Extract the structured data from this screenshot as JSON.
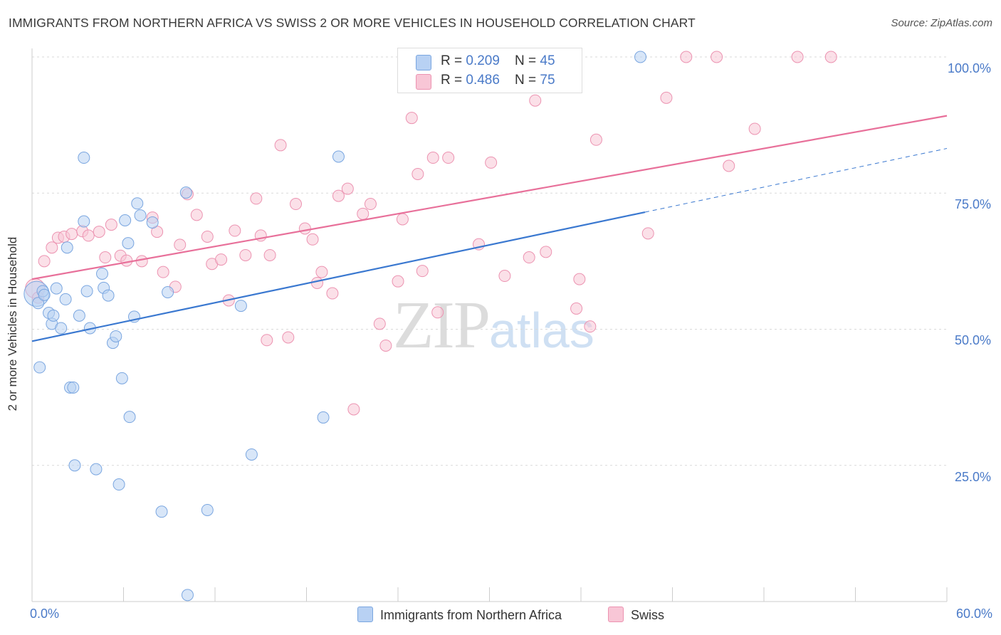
{
  "title": "IMMIGRANTS FROM NORTHERN AFRICA VS SWISS 2 OR MORE VEHICLES IN HOUSEHOLD CORRELATION CHART",
  "source": "Source: ZipAtlas.com",
  "watermark": {
    "part1": "ZIP",
    "part2": "atlas"
  },
  "legend_top": {
    "rows": [
      {
        "r_label": "R = ",
        "r_value": "0.209",
        "n_label": "N = ",
        "n_value": "45"
      },
      {
        "r_label": "R = ",
        "r_value": "0.486",
        "n_label": "N = ",
        "n_value": "75"
      }
    ]
  },
  "colors": {
    "blue_fill": "#b8d1f3",
    "blue_stroke": "#7aa6e0",
    "blue_line": "#3a78d0",
    "pink_fill": "#f8c6d6",
    "pink_stroke": "#ec93b1",
    "pink_line": "#e8709a",
    "grid": "#d9d9d9",
    "tick_text": "#4a7ac8"
  },
  "chart_data": {
    "type": "scatter",
    "title": "IMMIGRANTS FROM NORTHERN AFRICA VS SWISS 2 OR MORE VEHICLES IN HOUSEHOLD CORRELATION CHART",
    "xlabel": "",
    "ylabel": "2 or more Vehicles in Household",
    "xlim": [
      0,
      60
    ],
    "ylim": [
      0,
      100
    ],
    "x_tick_labels": [
      "0.0%",
      "60.0%"
    ],
    "y_tick_labels": [
      "100.0%",
      "75.0%",
      "50.0%",
      "25.0%"
    ],
    "y_tick_values": [
      100,
      75,
      50,
      25
    ],
    "grid": true,
    "legend_position": "bottom",
    "series": [
      {
        "name": "Immigrants from Northern Africa",
        "r": 0.209,
        "n": 45,
        "trend": {
          "x0": 0,
          "y0": 47.8,
          "x1": 40.2,
          "y1": 71.5,
          "dash_to_x": 60,
          "dash_to_y": 83.2
        },
        "points": [
          [
            0.3,
            56.5,
            2.2
          ],
          [
            0.4,
            54.8,
            1
          ],
          [
            0.5,
            43,
            1
          ],
          [
            0.7,
            57,
            1
          ],
          [
            0.8,
            56.3,
            1
          ],
          [
            1.1,
            53,
            1
          ],
          [
            1.3,
            51,
            1
          ],
          [
            1.4,
            52.5,
            1
          ],
          [
            1.6,
            57.5,
            1
          ],
          [
            1.9,
            50.2,
            1
          ],
          [
            2.2,
            55.5,
            1
          ],
          [
            2.3,
            65,
            1
          ],
          [
            2.5,
            39.3,
            1
          ],
          [
            2.7,
            39.3,
            1
          ],
          [
            2.8,
            25,
            1
          ],
          [
            3.1,
            52.5,
            1
          ],
          [
            3.4,
            81.5,
            1
          ],
          [
            3.4,
            69.8,
            1
          ],
          [
            3.6,
            57,
            1
          ],
          [
            3.8,
            50.2,
            1
          ],
          [
            4.2,
            24.3,
            1
          ],
          [
            4.6,
            60.2,
            1
          ],
          [
            4.7,
            57.6,
            1
          ],
          [
            5.0,
            56.2,
            1
          ],
          [
            5.3,
            47.5,
            1
          ],
          [
            5.5,
            48.7,
            1
          ],
          [
            5.7,
            21.5,
            1
          ],
          [
            5.9,
            41,
            1
          ],
          [
            6.1,
            70,
            1
          ],
          [
            6.3,
            65.8,
            1
          ],
          [
            6.4,
            33.9,
            1
          ],
          [
            6.7,
            52.3,
            1
          ],
          [
            6.9,
            73.1,
            1
          ],
          [
            7.1,
            70.9,
            1
          ],
          [
            7.9,
            69.6,
            1
          ],
          [
            8.5,
            16.5,
            1
          ],
          [
            8.9,
            56.8,
            1
          ],
          [
            10.1,
            75.1,
            1
          ],
          [
            10.2,
            1.2,
            1
          ],
          [
            11.5,
            16.8,
            1
          ],
          [
            13.7,
            54.3,
            1
          ],
          [
            14.4,
            27,
            1
          ],
          [
            19.1,
            33.8,
            1
          ],
          [
            20.1,
            81.7,
            1
          ],
          [
            39.9,
            100,
            1
          ]
        ]
      },
      {
        "name": "Swiss",
        "r": 0.486,
        "n": 75,
        "trend": {
          "x0": 0,
          "y0": 59.2,
          "x1": 60,
          "y1": 89.2
        },
        "points": [
          [
            0.2,
            57.5,
            1.7
          ],
          [
            0.4,
            55.8,
            1
          ],
          [
            0.8,
            62.5,
            1
          ],
          [
            1.3,
            65,
            1
          ],
          [
            1.7,
            66.8,
            1
          ],
          [
            2.1,
            67,
            1
          ],
          [
            2.6,
            67.5,
            1
          ],
          [
            3.3,
            68,
            1
          ],
          [
            3.7,
            67.2,
            1
          ],
          [
            4.4,
            67.9,
            1
          ],
          [
            4.8,
            63.2,
            1
          ],
          [
            5.2,
            69.2,
            1
          ],
          [
            5.8,
            63.5,
            1
          ],
          [
            6.2,
            62.6,
            1
          ],
          [
            7.2,
            62.5,
            1
          ],
          [
            7.9,
            70.5,
            1
          ],
          [
            8.2,
            67.9,
            1
          ],
          [
            8.6,
            60.5,
            1
          ],
          [
            9.4,
            57.8,
            1
          ],
          [
            9.7,
            65.5,
            1
          ],
          [
            10.2,
            74.8,
            1
          ],
          [
            10.8,
            71,
            1
          ],
          [
            11.5,
            67,
            1
          ],
          [
            11.8,
            62,
            1
          ],
          [
            12.4,
            62.8,
            1
          ],
          [
            12.9,
            55.3,
            1
          ],
          [
            13.3,
            68.1,
            1
          ],
          [
            14.0,
            63.6,
            1
          ],
          [
            14.7,
            74,
            1
          ],
          [
            15.0,
            67.2,
            1
          ],
          [
            15.4,
            48,
            1
          ],
          [
            15.6,
            63.6,
            1
          ],
          [
            16.3,
            83.8,
            1
          ],
          [
            16.8,
            48.5,
            1
          ],
          [
            17.3,
            73,
            1
          ],
          [
            17.9,
            68.5,
            1
          ],
          [
            18.4,
            66.5,
            1
          ],
          [
            18.7,
            58.5,
            1
          ],
          [
            19.0,
            60.5,
            1
          ],
          [
            19.7,
            56.6,
            1
          ],
          [
            20.1,
            74.5,
            1
          ],
          [
            20.7,
            75.8,
            1
          ],
          [
            21.1,
            35.3,
            1
          ],
          [
            21.7,
            71.2,
            1
          ],
          [
            22.2,
            73,
            1
          ],
          [
            22.8,
            51,
            1
          ],
          [
            23.2,
            47,
            1
          ],
          [
            24.0,
            58.8,
            1
          ],
          [
            24.3,
            70.2,
            1
          ],
          [
            24.9,
            88.8,
            1
          ],
          [
            25.3,
            78.5,
            1
          ],
          [
            25.6,
            60.7,
            1
          ],
          [
            26.3,
            81.5,
            1
          ],
          [
            26.6,
            53.1,
            1
          ],
          [
            27.3,
            81.5,
            1
          ],
          [
            29.3,
            65.6,
            1
          ],
          [
            30.1,
            80.6,
            1
          ],
          [
            31.0,
            59.8,
            1
          ],
          [
            32.0,
            100,
            1
          ],
          [
            32.6,
            63.2,
            1
          ],
          [
            33.0,
            92,
            1
          ],
          [
            33.6,
            96.8,
            1
          ],
          [
            33.7,
            64.2,
            1
          ],
          [
            35.7,
            53.8,
            1
          ],
          [
            35.9,
            59.2,
            1
          ],
          [
            36.6,
            50.5,
            1
          ],
          [
            37.0,
            84.8,
            1
          ],
          [
            40.4,
            67.6,
            1
          ],
          [
            41.6,
            92.5,
            1
          ],
          [
            42.9,
            100,
            1
          ],
          [
            44.9,
            100,
            1
          ],
          [
            45.7,
            80,
            1
          ],
          [
            47.4,
            86.8,
            1
          ],
          [
            50.2,
            100,
            1
          ],
          [
            52.4,
            100,
            1
          ]
        ]
      }
    ]
  }
}
